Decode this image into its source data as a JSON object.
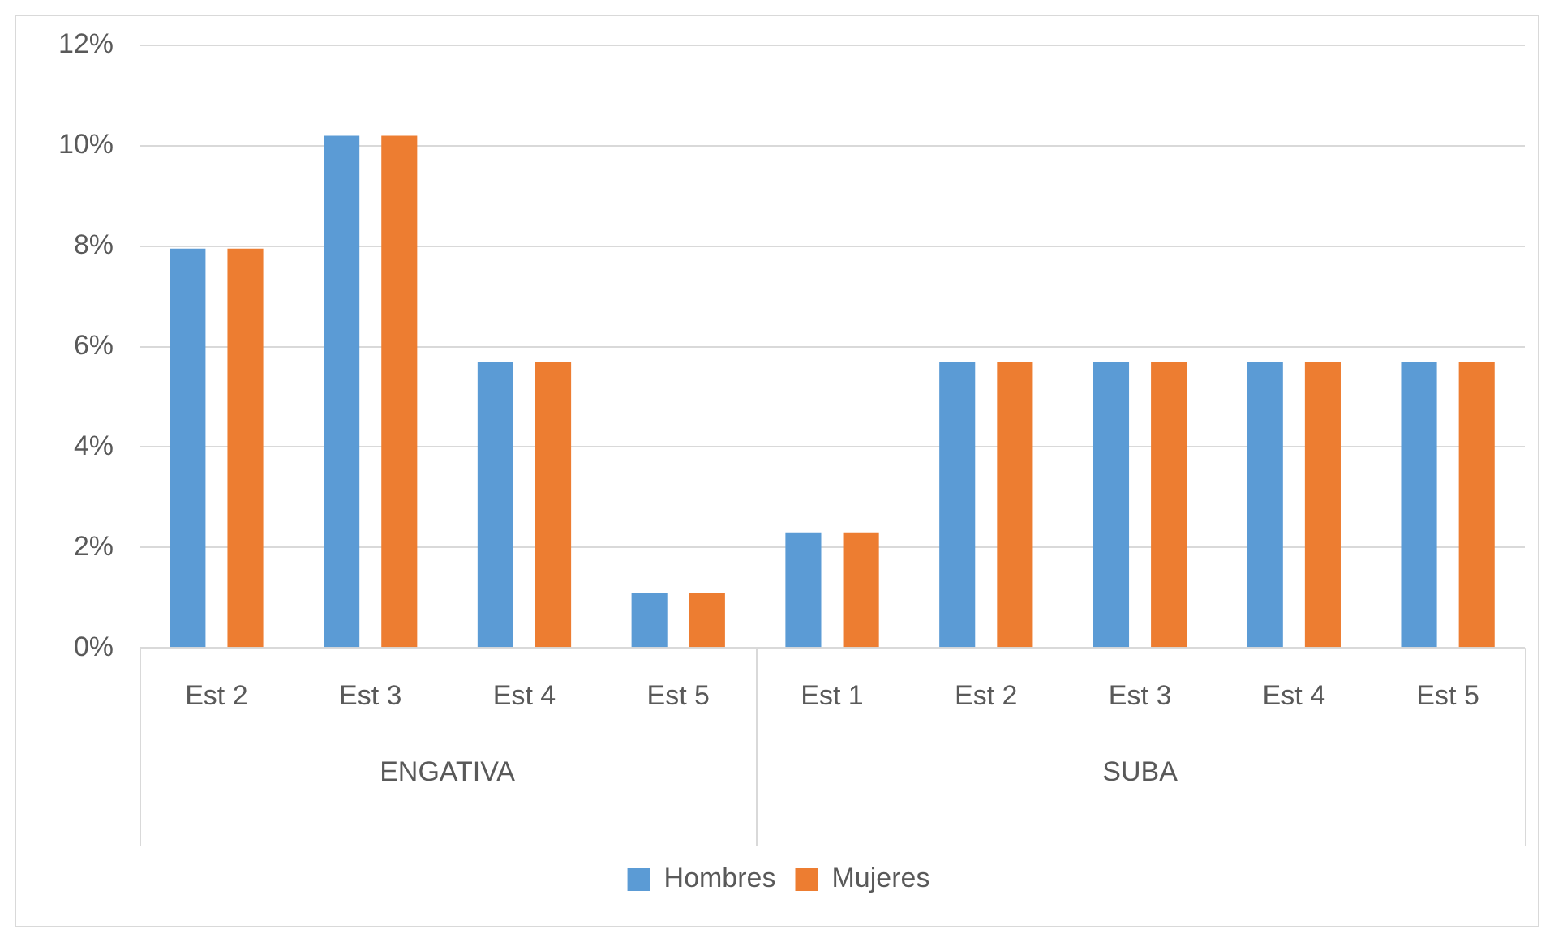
{
  "chart_data": {
    "type": "bar",
    "categories": [
      "Est 2",
      "Est 3",
      "Est 4",
      "Est 5",
      "Est 1",
      "Est 2",
      "Est 3",
      "Est 4",
      "Est 5"
    ],
    "series": [
      {
        "name": "Hombres",
        "color": "#5b9bd5",
        "values": [
          7.95,
          10.2,
          5.7,
          1.1,
          2.3,
          5.7,
          5.7,
          5.7,
          5.7
        ]
      },
      {
        "name": "Mujeres",
        "color": "#ed7d31",
        "values": [
          7.95,
          10.2,
          5.7,
          1.1,
          2.3,
          5.7,
          5.7,
          5.7,
          5.7
        ]
      }
    ],
    "annotations": [
      "ENGATIVA",
      "SUBA"
    ],
    "ylim": [
      0,
      12
    ],
    "yticks": [
      {
        "value": 0,
        "label": "0%"
      },
      {
        "value": 2,
        "label": "2%"
      },
      {
        "value": 4,
        "label": "4%"
      },
      {
        "value": 6,
        "label": "6%"
      },
      {
        "value": 8,
        "label": "8%"
      },
      {
        "value": 10,
        "label": "10%"
      },
      {
        "value": 12,
        "label": "12%"
      }
    ],
    "grid": "y",
    "legend": "bottom"
  }
}
